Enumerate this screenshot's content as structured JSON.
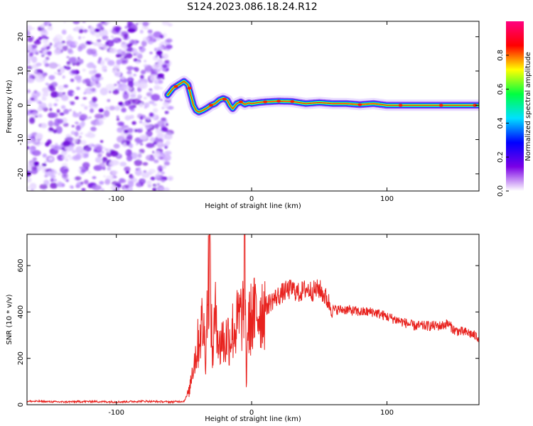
{
  "chart_data": [
    {
      "type": "heatmap",
      "title": "S124.2023.086.18.24.R12",
      "xlabel": "Height of straight line (km)",
      "ylabel": "Frequency (Hz)",
      "xlim": [
        -166,
        168
      ],
      "ylim": [
        -25,
        24.5
      ],
      "x_ticks": [
        -100,
        0,
        100
      ],
      "y_ticks": [
        -20,
        -10,
        0,
        10,
        20
      ],
      "noise_region_x": [
        -166,
        -60
      ],
      "ridge": {
        "x": [
          -62,
          -58,
          -54,
          -50,
          -47,
          -45,
          -43,
          -41,
          -39,
          -36,
          -33,
          -30,
          -27,
          -24,
          -21,
          -18,
          -16,
          -14,
          -11,
          -8,
          -5,
          -2,
          0,
          5,
          10,
          20,
          30,
          40,
          50,
          60,
          70,
          80,
          90,
          100,
          120,
          140,
          160,
          168
        ],
        "y": [
          3,
          5,
          6,
          7,
          6,
          3,
          0,
          -1.5,
          -2,
          -1.5,
          -0.8,
          0,
          0.5,
          1.5,
          2,
          1.5,
          0,
          -1,
          0.5,
          1,
          0.3,
          0.7,
          0.5,
          0.8,
          1,
          1.2,
          1.1,
          0.5,
          0.8,
          0.5,
          0.5,
          0.2,
          0.5,
          0,
          0,
          0,
          0,
          0
        ]
      },
      "colorbar": {
        "label": "Normalized spectral amplitude",
        "range": [
          0,
          1
        ],
        "ticks": [
          0.0,
          0.2,
          0.4,
          0.6,
          0.8
        ],
        "tick_labels": [
          "0.0",
          "0.2",
          "0.4",
          "0.6",
          "0.8"
        ],
        "colors": [
          "#ffffff",
          "#7b00e6",
          "#0000ff",
          "#00e0ff",
          "#00ff40",
          "#ffff00",
          "#ff0000",
          "#ff0080"
        ]
      }
    },
    {
      "type": "line",
      "xlabel": "Height of straight line (km)",
      "ylabel": "SNR (10 * v/v)",
      "xlim": [
        -166,
        168
      ],
      "ylim": [
        0,
        735
      ],
      "x_ticks": [
        -100,
        0,
        100
      ],
      "y_ticks": [
        0,
        200,
        400,
        600
      ],
      "series": [
        {
          "color": "#e8221e",
          "x": [
            -166,
            -140,
            -120,
            -100,
            -80,
            -60,
            -50,
            -46,
            -44,
            -42,
            -40,
            -38,
            -36,
            -34,
            -32,
            -31,
            -30,
            -29,
            -28,
            -26,
            -24,
            -22,
            -20,
            -18,
            -16,
            -14,
            -12,
            -10,
            -8,
            -6,
            -5,
            -4,
            -3,
            -2,
            0,
            5,
            10,
            15,
            20,
            25,
            30,
            35,
            40,
            45,
            50,
            55,
            60,
            70,
            80,
            90,
            100,
            110,
            120,
            130,
            140,
            145,
            150,
            160,
            168
          ],
          "y": [
            15,
            12,
            14,
            12,
            15,
            12,
            15,
            60,
            150,
            200,
            250,
            320,
            350,
            230,
            550,
            660,
            400,
            200,
            300,
            420,
            230,
            300,
            250,
            300,
            290,
            320,
            330,
            360,
            380,
            400,
            720,
            80,
            330,
            340,
            380,
            400,
            420,
            450,
            470,
            490,
            500,
            480,
            500,
            490,
            500,
            460,
            410,
            410,
            400,
            400,
            380,
            360,
            340,
            340,
            340,
            350,
            320,
            310,
            290
          ]
        }
      ]
    }
  ]
}
